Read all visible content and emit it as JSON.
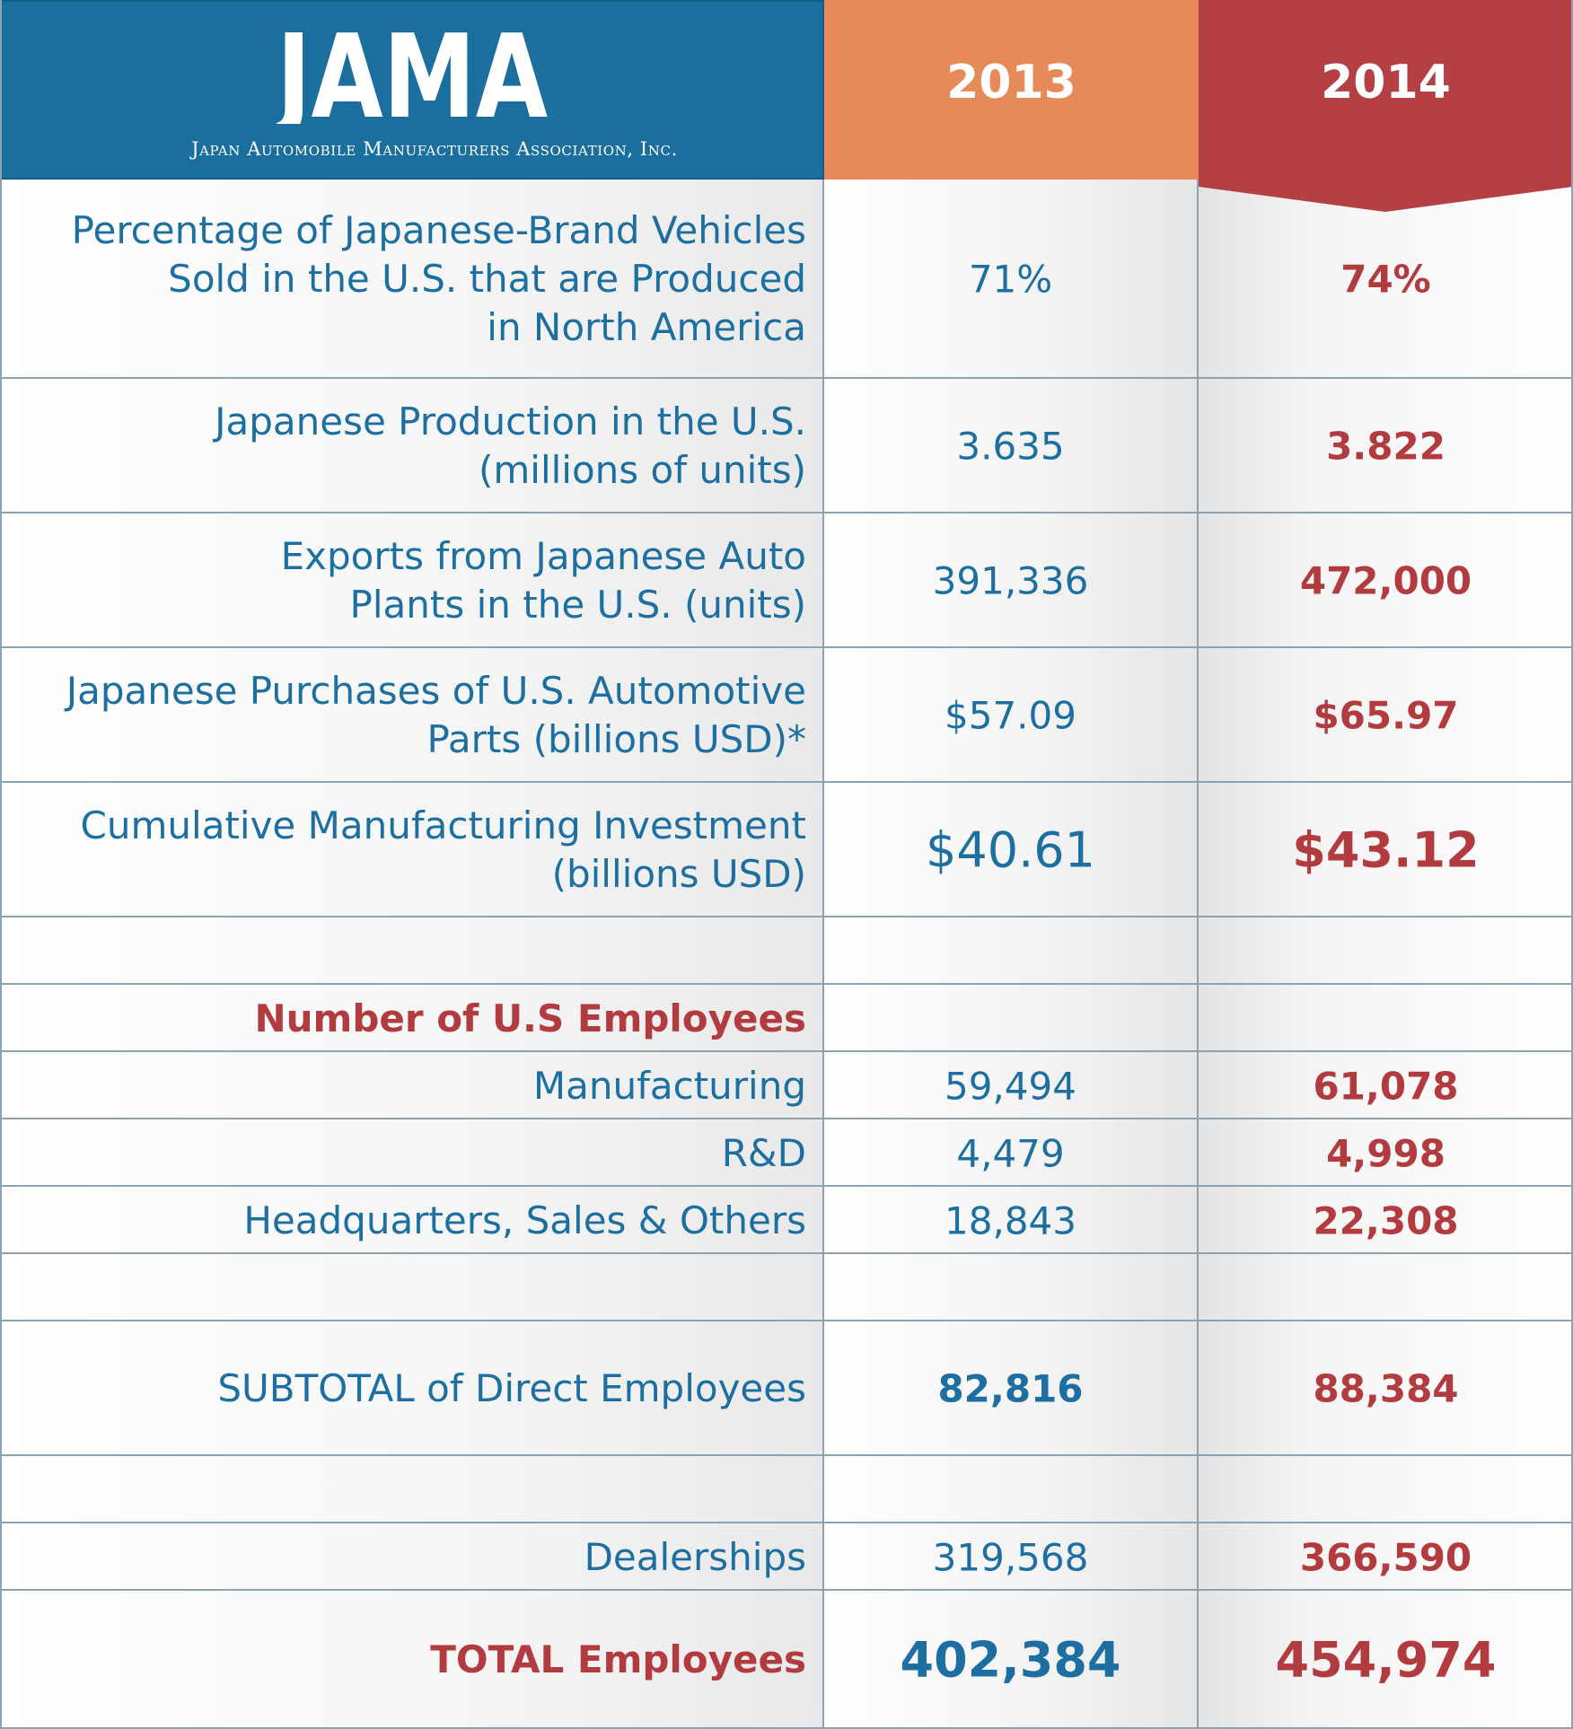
{
  "header": {
    "logo_text": "JAMA",
    "logo_subtitle": "Japan Automobile Manufacturers Association, Inc.",
    "col_2013": "2013",
    "col_2014": "2014"
  },
  "colors": {
    "blue": "#1c6fa0",
    "header_blue": "#1b6f9e",
    "orange": "#e68a5a",
    "red": "#b23b3f"
  },
  "chart_data": {
    "type": "table",
    "columns": [
      "2013",
      "2014"
    ],
    "rows": [
      {
        "label": "Percentage of Japanese-Brand Vehicles\nSold in the U.S. that are Produced\nin North America",
        "v2013": "71%",
        "v2014": "74%"
      },
      {
        "label": "Japanese Production in the U.S.\n(millions of units)",
        "v2013": "3.635",
        "v2014": "3.822"
      },
      {
        "label": "Exports from Japanese Auto\nPlants in the U.S. (units)",
        "v2013": "391,336",
        "v2014": "472,000"
      },
      {
        "label": "Japanese Purchases of U.S. Automotive\nParts (billions USD)*",
        "v2013": "$57.09",
        "v2014": "$65.97"
      },
      {
        "label": "Cumulative Manufacturing Investment\n(billions USD)",
        "v2013": "$40.61",
        "v2014": "$43.12"
      },
      {
        "label": "",
        "v2013": "",
        "v2014": ""
      },
      {
        "label": "Number of U.S Employees",
        "v2013": "",
        "v2014": ""
      },
      {
        "label": "Manufacturing",
        "v2013": "59,494",
        "v2014": "61,078"
      },
      {
        "label": "R&D",
        "v2013": "4,479",
        "v2014": "4,998"
      },
      {
        "label": "Headquarters, Sales & Others",
        "v2013": "18,843",
        "v2014": "22,308"
      },
      {
        "label": "",
        "v2013": "",
        "v2014": ""
      },
      {
        "label": "SUBTOTAL of Direct Employees",
        "v2013": "82,816",
        "v2014": "88,384"
      },
      {
        "label": "",
        "v2013": "",
        "v2014": ""
      },
      {
        "label": "Dealerships",
        "v2013": "319,568",
        "v2014": "366,590"
      },
      {
        "label": "TOTAL Employees",
        "v2013": "402,384",
        "v2014": "454,974"
      }
    ]
  }
}
